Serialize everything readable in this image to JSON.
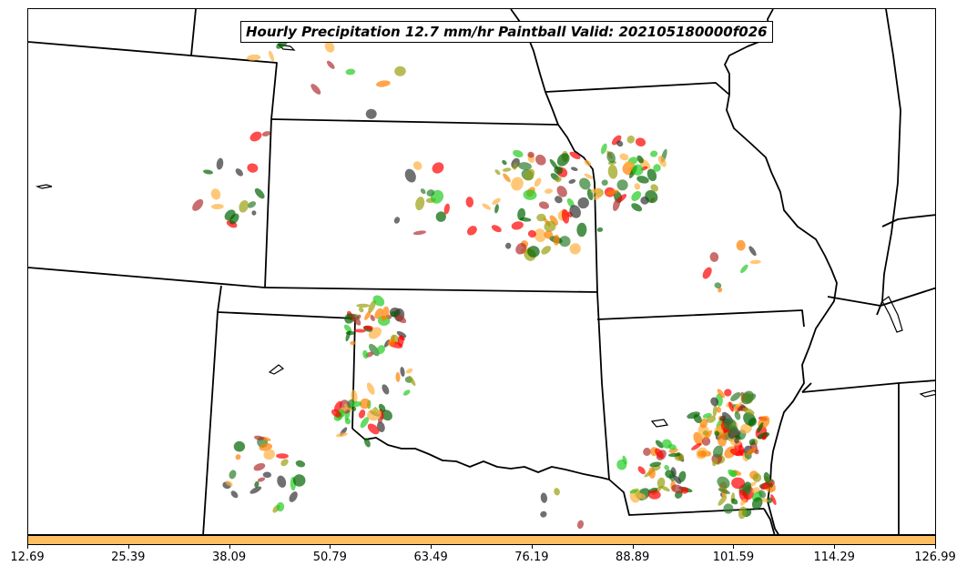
{
  "title": "Hourly Precipitation 12.7 mm/hr Paintball Valid: 202105180000f026",
  "map": {
    "region": "Central US (KS, MO, OK, AR, NE, CO, IL)",
    "boundary_color": "#000000",
    "paintball_colors": [
      "#ff0000",
      "#b03030",
      "#ff8000",
      "#ffb040",
      "#9aa010",
      "#22cc22",
      "#2e7d2e",
      "#006400",
      "#333333"
    ]
  },
  "colorbar": {
    "color": "#fdbf5f",
    "ticks": [
      "12.69",
      "25.39",
      "38.09",
      "50.79",
      "63.49",
      "76.19",
      "88.89",
      "101.59",
      "114.29",
      "126.99"
    ]
  }
}
